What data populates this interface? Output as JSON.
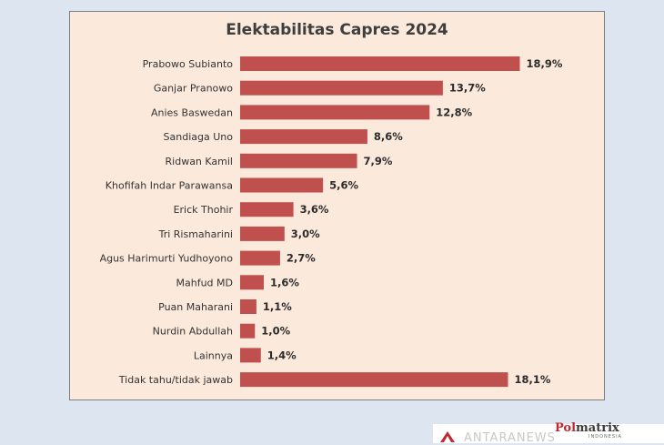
{
  "chart_data": {
    "type": "bar",
    "orientation": "horizontal",
    "title": "Elektabilitas Capres 2024",
    "categories": [
      "Prabowo Subianto",
      "Ganjar Pranowo",
      "Anies Baswedan",
      "Sandiaga Uno",
      "Ridwan Kamil",
      "Khofifah Indar Parawansa",
      "Erick Thohir",
      "Tri Rismaharini",
      "Agus Harimurti Yudhoyono",
      "Mahfud MD",
      "Puan Maharani",
      "Nurdin Abdullah",
      "Lainnya",
      "Tidak tahu/tidak jawab"
    ],
    "values": [
      18.9,
      13.7,
      12.8,
      8.6,
      7.9,
      5.6,
      3.6,
      3.0,
      2.7,
      1.6,
      1.1,
      1.0,
      1.4,
      18.1
    ],
    "value_labels": [
      "18,9%",
      "13,7%",
      "12,8%",
      "8,6%",
      "7,9%",
      "5,6%",
      "3,6%",
      "3,0%",
      "2,7%",
      "1,6%",
      "1,1%",
      "1,0%",
      "1,4%",
      "18,1%"
    ],
    "bar_color": "#c0504d",
    "background_color": "#fbe9dc",
    "grid": false,
    "legend": "none"
  },
  "branding": {
    "watermark": "ANTARANEWS",
    "logo_main": "Pol",
    "logo_rest": "matrix",
    "logo_sub": "INDONESIA"
  }
}
